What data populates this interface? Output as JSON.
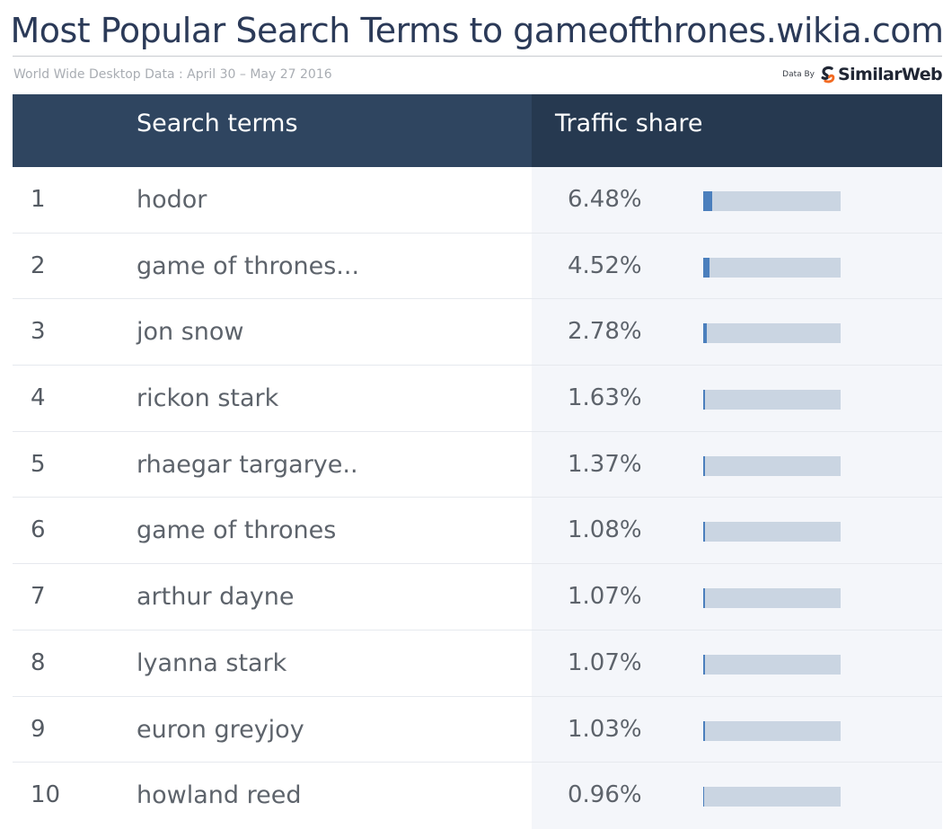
{
  "title": "Most Popular Search Terms to gameofthrones.wikia.com",
  "subtitle": "World Wide Desktop Data : April 30 – May 27 2016",
  "attribution": {
    "prefix": "Data By",
    "brand": "SimilarWeb",
    "logo_icon": "similarweb-logo-icon"
  },
  "colors": {
    "header_left": "#2f4560",
    "header_right": "#263950",
    "bar_track": "#cad5e2",
    "bar_fill": "#4b7fbd",
    "title": "#2b3a58"
  },
  "chart_data": {
    "type": "table",
    "columns": [
      "Search terms",
      "Traffic share"
    ],
    "rows": [
      {
        "rank": "1",
        "term": "hodor",
        "share_label": "6.48%",
        "share": 6.48
      },
      {
        "rank": "2",
        "term": "game of thrones...",
        "share_label": "4.52%",
        "share": 4.52
      },
      {
        "rank": "3",
        "term": "jon snow",
        "share_label": "2.78%",
        "share": 2.78
      },
      {
        "rank": "4",
        "term": "rickon stark",
        "share_label": "1.63%",
        "share": 1.63
      },
      {
        "rank": "5",
        "term": "rhaegar targarye..",
        "share_label": "1.37%",
        "share": 1.37
      },
      {
        "rank": "6",
        "term": "game of thrones",
        "share_label": "1.08%",
        "share": 1.08
      },
      {
        "rank": "7",
        "term": "arthur dayne",
        "share_label": "1.07%",
        "share": 1.07
      },
      {
        "rank": "8",
        "term": "lyanna stark",
        "share_label": "1.07%",
        "share": 1.07
      },
      {
        "rank": "9",
        "term": "euron greyjoy",
        "share_label": "1.03%",
        "share": 1.03
      },
      {
        "rank": "10",
        "term": "howland reed",
        "share_label": "0.96%",
        "share": 0.96
      }
    ]
  }
}
